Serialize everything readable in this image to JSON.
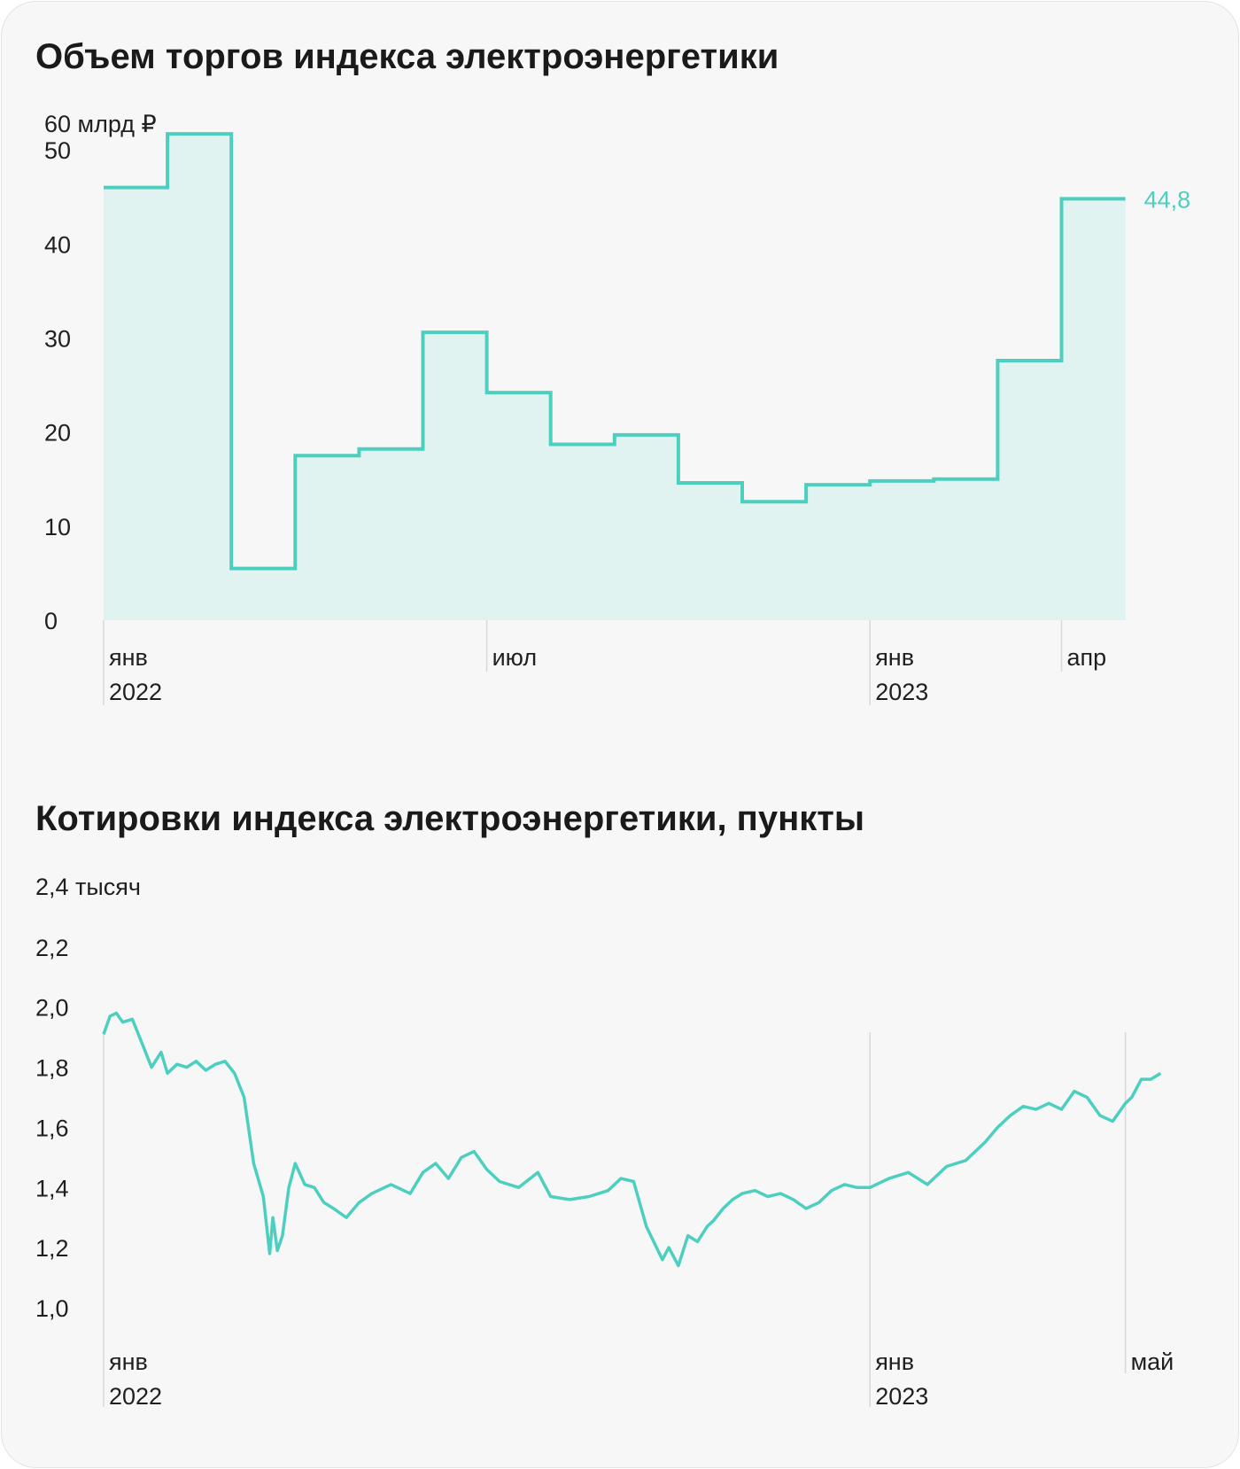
{
  "colors": {
    "line": "#4dcfc0",
    "fill": "#e0f3f0",
    "grid": "#d8d8d8"
  },
  "chart_data": [
    {
      "type": "area",
      "title": "Объем торгов индекса электроэнергетики",
      "unit_label": "60 млрд ₽",
      "ylim": [
        0,
        60
      ],
      "y_ticks": [
        "0",
        "10",
        "20",
        "30",
        "40",
        "50"
      ],
      "x_ticks": [
        {
          "label": "янв",
          "sub": "2022",
          "month": 0
        },
        {
          "label": "июл",
          "sub": "",
          "month": 6
        },
        {
          "label": "янв",
          "sub": "2023",
          "month": 12
        },
        {
          "label": "апр",
          "sub": "",
          "month": 15
        }
      ],
      "categories": [
        "2022-01",
        "2022-02",
        "2022-03",
        "2022-04",
        "2022-05",
        "2022-06",
        "2022-07",
        "2022-08",
        "2022-09",
        "2022-10",
        "2022-11",
        "2022-12",
        "2023-01",
        "2023-02",
        "2023-03",
        "2023-04"
      ],
      "values": [
        46.0,
        51.7,
        5.5,
        17.5,
        18.2,
        30.6,
        24.2,
        18.7,
        19.7,
        14.6,
        12.6,
        14.4,
        14.8,
        15.0,
        27.6,
        44.8
      ],
      "last_value_label": "44,8"
    },
    {
      "type": "line",
      "title": "Котировки индекса электроэнергетики, пункты",
      "unit_label": "2,4 тысяч",
      "ylim": [
        1.0,
        2.4
      ],
      "y_ticks": [
        "1,0",
        "1,2",
        "1,4",
        "1,6",
        "1,8",
        "2,0",
        "2,2"
      ],
      "x_ticks": [
        {
          "label": "янв",
          "sub": "2022",
          "month": 0
        },
        {
          "label": "янв",
          "sub": "2023",
          "month": 12
        },
        {
          "label": "май",
          "sub": "",
          "month": 16
        }
      ],
      "x_month": [
        0.0,
        0.1,
        0.2,
        0.3,
        0.45,
        0.6,
        0.75,
        0.9,
        1.0,
        1.15,
        1.3,
        1.45,
        1.6,
        1.75,
        1.9,
        2.05,
        2.2,
        2.35,
        2.5,
        2.6,
        2.65,
        2.72,
        2.8,
        2.9,
        3.0,
        3.15,
        3.3,
        3.45,
        3.6,
        3.8,
        4.0,
        4.2,
        4.5,
        4.8,
        5.0,
        5.2,
        5.4,
        5.6,
        5.8,
        6.0,
        6.2,
        6.5,
        6.8,
        7.0,
        7.3,
        7.6,
        7.9,
        8.1,
        8.3,
        8.5,
        8.75,
        8.85,
        9.0,
        9.15,
        9.3,
        9.45,
        9.55,
        9.7,
        9.85,
        10.0,
        10.2,
        10.4,
        10.6,
        10.8,
        11.0,
        11.2,
        11.4,
        11.6,
        11.8,
        12.0,
        12.3,
        12.6,
        12.9,
        13.2,
        13.5,
        13.8,
        14.0,
        14.2,
        14.4,
        14.6,
        14.8,
        15.0,
        15.2,
        15.4,
        15.6,
        15.8,
        16.0,
        16.1,
        16.25,
        16.4,
        16.55
      ],
      "y": [
        1.91,
        1.97,
        1.98,
        1.95,
        1.96,
        1.88,
        1.8,
        1.85,
        1.78,
        1.81,
        1.8,
        1.82,
        1.79,
        1.81,
        1.82,
        1.78,
        1.7,
        1.48,
        1.37,
        1.18,
        1.3,
        1.19,
        1.24,
        1.4,
        1.48,
        1.41,
        1.4,
        1.35,
        1.33,
        1.3,
        1.35,
        1.38,
        1.41,
        1.38,
        1.45,
        1.48,
        1.43,
        1.5,
        1.52,
        1.46,
        1.42,
        1.4,
        1.45,
        1.37,
        1.36,
        1.37,
        1.39,
        1.43,
        1.42,
        1.27,
        1.16,
        1.2,
        1.14,
        1.24,
        1.22,
        1.27,
        1.29,
        1.33,
        1.36,
        1.38,
        1.39,
        1.37,
        1.38,
        1.36,
        1.33,
        1.35,
        1.39,
        1.41,
        1.4,
        1.4,
        1.43,
        1.45,
        1.41,
        1.47,
        1.49,
        1.55,
        1.6,
        1.64,
        1.67,
        1.66,
        1.68,
        1.66,
        1.72,
        1.7,
        1.64,
        1.62,
        1.68,
        1.7,
        1.76,
        1.76,
        1.78
      ]
    }
  ]
}
